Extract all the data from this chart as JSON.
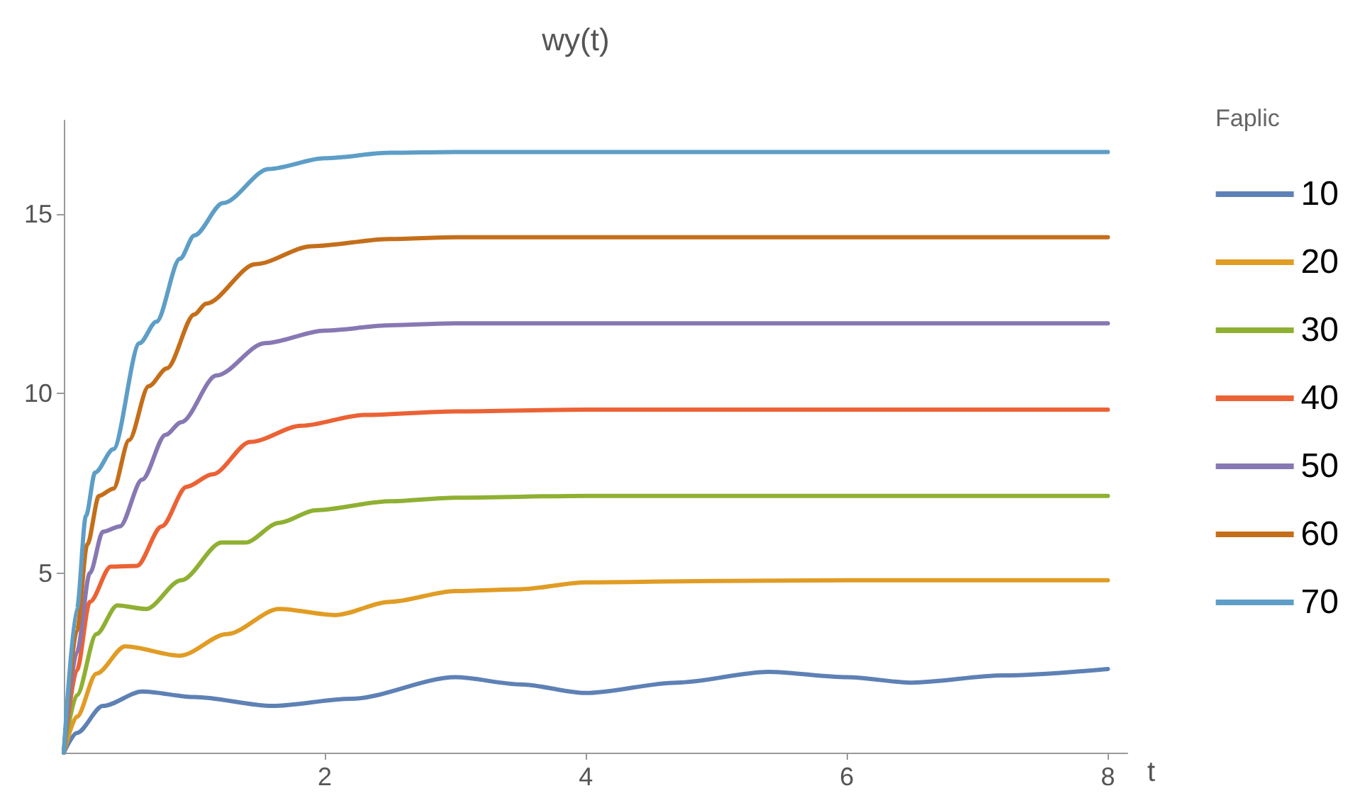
{
  "chart_data": {
    "type": "line",
    "title": "wy(t)",
    "xlabel": "t",
    "legend_title": "Faplic",
    "legend": "right",
    "grid": false,
    "marker": "none",
    "line_style": "solid",
    "xlim": [
      0,
      8.15
    ],
    "xticks": [
      2,
      4,
      6,
      8
    ],
    "ylim": [
      0,
      17.6
    ],
    "yticks": [
      5,
      10,
      15
    ],
    "series": [
      {
        "name": "10",
        "color": "#5e81b5",
        "x": [
          0,
          0.1,
          0.3,
          0.6,
          1.0,
          1.6,
          2.2,
          3.0,
          3.5,
          4.0,
          4.7,
          5.4,
          6.0,
          6.5,
          7.2,
          8.0
        ],
        "values": [
          0,
          0.55,
          1.3,
          1.7,
          1.55,
          1.3,
          1.5,
          2.1,
          1.9,
          1.66,
          1.95,
          2.25,
          2.1,
          1.95,
          2.15,
          2.33
        ]
      },
      {
        "name": "20",
        "color": "#e19c24",
        "x": [
          0,
          0.1,
          0.25,
          0.47,
          0.89,
          1.25,
          1.65,
          2.08,
          2.5,
          3.0,
          3.5,
          4.0,
          5.0,
          6.0,
          8.0
        ],
        "values": [
          0,
          1.0,
          2.2,
          2.96,
          2.7,
          3.3,
          4.0,
          3.83,
          4.2,
          4.5,
          4.55,
          4.74,
          4.78,
          4.8,
          4.8
        ]
      },
      {
        "name": "30",
        "color": "#8fb032",
        "x": [
          0,
          0.1,
          0.25,
          0.41,
          0.63,
          0.9,
          1.21,
          1.39,
          1.65,
          1.93,
          2.5,
          3.0,
          4.0,
          8.0
        ],
        "values": [
          0,
          1.6,
          3.3,
          4.1,
          4.0,
          4.8,
          5.85,
          5.85,
          6.4,
          6.75,
          7.0,
          7.1,
          7.15,
          7.15
        ]
      },
      {
        "name": "40",
        "color": "#eb6235",
        "x": [
          0,
          0.1,
          0.2,
          0.36,
          0.56,
          0.75,
          0.94,
          1.14,
          1.43,
          1.82,
          2.3,
          3.0,
          4.0,
          8.0
        ],
        "values": [
          0,
          2.3,
          4.2,
          5.18,
          5.2,
          6.3,
          7.4,
          7.75,
          8.65,
          9.1,
          9.4,
          9.5,
          9.55,
          9.55
        ]
      },
      {
        "name": "50",
        "color": "#8778b3",
        "x": [
          0,
          0.1,
          0.2,
          0.3,
          0.43,
          0.6,
          0.78,
          0.9,
          1.17,
          1.54,
          2.0,
          2.5,
          3.0,
          4.0,
          8.0
        ],
        "values": [
          0,
          2.8,
          5.0,
          6.15,
          6.3,
          7.6,
          8.85,
          9.2,
          10.5,
          11.4,
          11.75,
          11.9,
          11.95,
          11.95,
          11.95
        ]
      },
      {
        "name": "60",
        "color": "#c56e1a",
        "x": [
          0,
          0.1,
          0.18,
          0.27,
          0.38,
          0.5,
          0.65,
          0.79,
          1.0,
          1.09,
          1.47,
          1.9,
          2.5,
          3.0,
          8.0
        ],
        "values": [
          0,
          3.4,
          5.8,
          7.15,
          7.35,
          8.7,
          10.2,
          10.7,
          12.2,
          12.5,
          13.6,
          14.1,
          14.3,
          14.35,
          14.35
        ]
      },
      {
        "name": "70",
        "color": "#5d9ec7",
        "x": [
          0,
          0.1,
          0.17,
          0.24,
          0.38,
          0.58,
          0.71,
          0.89,
          1.0,
          1.22,
          1.57,
          2.0,
          2.5,
          3.0,
          8.0
        ],
        "values": [
          0,
          4.0,
          6.6,
          7.8,
          8.45,
          11.4,
          12.0,
          13.75,
          14.4,
          15.3,
          16.25,
          16.55,
          16.7,
          16.72,
          16.72
        ]
      }
    ]
  }
}
